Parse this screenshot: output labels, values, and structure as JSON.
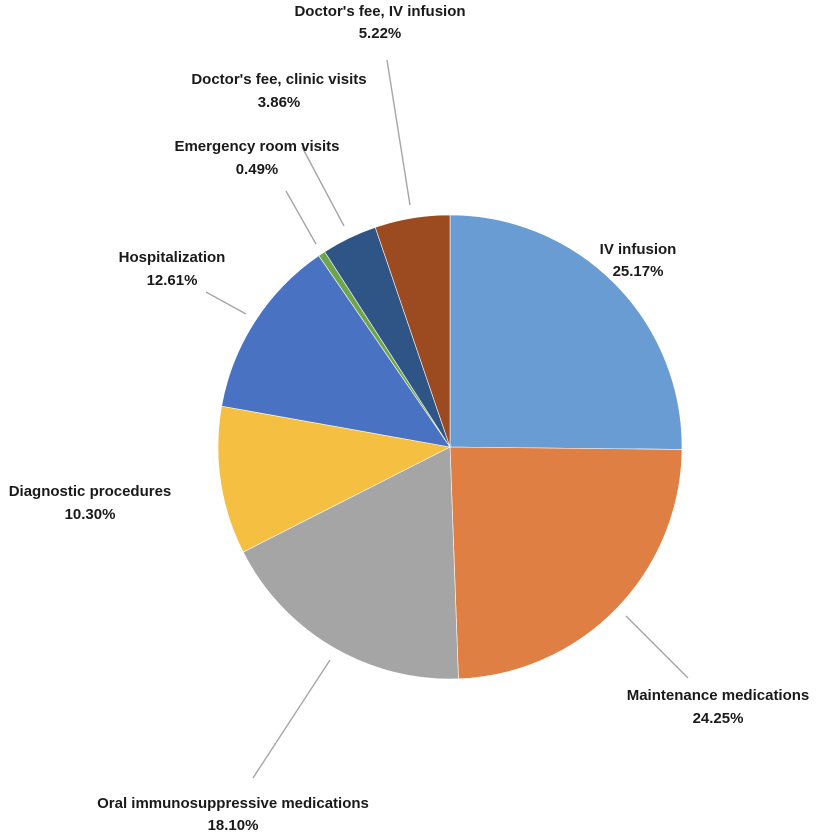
{
  "chart_data": {
    "type": "pie",
    "start_angle_deg": 0,
    "direction": "clockwise",
    "slices": [
      {
        "name": "IV infusion",
        "value": 25.17,
        "label": "25.17%",
        "color": "#699cd2"
      },
      {
        "name": "Maintenance medications",
        "value": 24.25,
        "label": "24.25%",
        "color": "#e07f44"
      },
      {
        "name": "Oral immunosuppressive medications",
        "value": 18.1,
        "label": "18.10%",
        "color": "#a5a5a5"
      },
      {
        "name": "Diagnostic procedures",
        "value": 10.3,
        "label": "10.30%",
        "color": "#f5bf42"
      },
      {
        "name": "Hospitalization",
        "value": 12.61,
        "label": "12.61%",
        "color": "#4a72c2"
      },
      {
        "name": "Emergency room visits",
        "value": 0.49,
        "label": "0.49%",
        "color": "#6ea54a"
      },
      {
        "name": "Doctor's fee, clinic visits",
        "value": 3.86,
        "label": "3.86%",
        "color": "#2f5486"
      },
      {
        "name": "Doctor's fee, IV infusion",
        "value": 5.22,
        "label": "5.22%",
        "color": "#9c4a1f"
      }
    ]
  }
}
